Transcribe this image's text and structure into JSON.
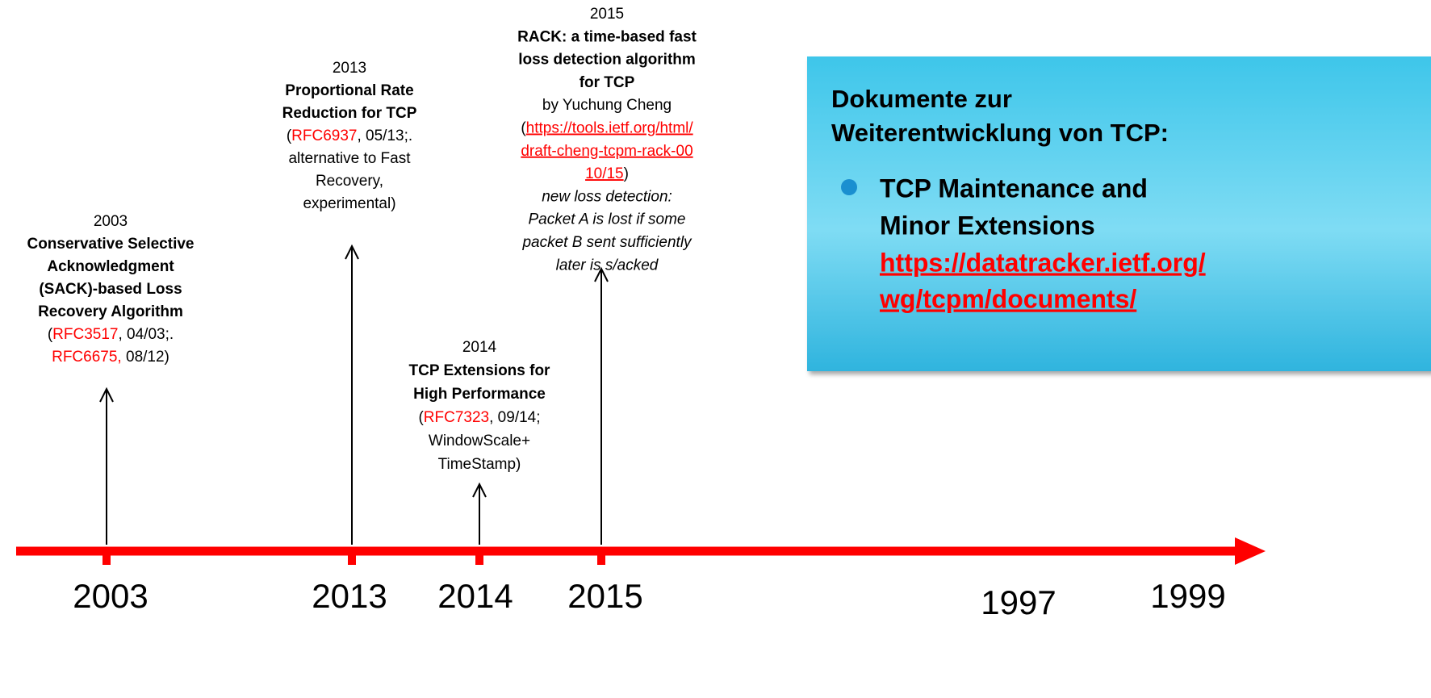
{
  "events": [
    {
      "year": "2003",
      "lines": [
        [
          {
            "text": "Conservative Selective",
            "style": "bold"
          }
        ],
        [
          {
            "text": "Acknowledgment",
            "style": "bold"
          }
        ],
        [
          {
            "text": "(SACK)-based Loss",
            "style": "bold"
          }
        ],
        [
          {
            "text": "Recovery Algorithm",
            "style": "bold"
          }
        ],
        [
          {
            "text": "(",
            "style": "plain"
          },
          {
            "text": "RFC3517",
            "style": "red"
          },
          {
            "text": ", 04/03;.",
            "style": "plain"
          }
        ],
        [
          {
            "text": "RFC6675,",
            "style": "red"
          },
          {
            "text": " 08/12)",
            "style": "plain"
          }
        ]
      ]
    },
    {
      "year": "2013",
      "lines": [
        [
          {
            "text": "Proportional Rate",
            "style": "bold"
          }
        ],
        [
          {
            "text": "Reduction for TCP",
            "style": "bold"
          }
        ],
        [
          {
            "text": "(",
            "style": "plain"
          },
          {
            "text": "RFC6937",
            "style": "red"
          },
          {
            "text": ", 05/13;.",
            "style": "plain"
          }
        ],
        [
          {
            "text": "alternative to Fast",
            "style": "plain"
          }
        ],
        [
          {
            "text": "Recovery,",
            "style": "plain"
          }
        ],
        [
          {
            "text": "experimental)",
            "style": "plain"
          }
        ]
      ]
    },
    {
      "year": "2014",
      "lines": [
        [
          {
            "text": "TCP Extensions for",
            "style": "bold"
          }
        ],
        [
          {
            "text": "High Performance",
            "style": "bold"
          }
        ],
        [
          {
            "text": "(",
            "style": "plain"
          },
          {
            "text": "RFC7323",
            "style": "red"
          },
          {
            "text": ", 09/14;",
            "style": "plain"
          }
        ],
        [
          {
            "text": "WindowScale+",
            "style": "plain"
          }
        ],
        [
          {
            "text": "TimeStamp)",
            "style": "plain"
          }
        ]
      ]
    },
    {
      "year": "2015",
      "lines": [
        [
          {
            "text": "RACK: a time-based fast",
            "style": "bold"
          }
        ],
        [
          {
            "text": "loss detection algorithm",
            "style": "bold"
          }
        ],
        [
          {
            "text": "for TCP",
            "style": "bold"
          }
        ],
        [
          {
            "text": "by Yuchung Cheng",
            "style": "plain"
          }
        ],
        [
          {
            "text": "(",
            "style": "plain"
          },
          {
            "text": "https://tools.ietf.org/html/",
            "style": "link"
          }
        ],
        [
          {
            "text": "draft-cheng-tcpm-rack-00",
            "style": "link"
          }
        ],
        [
          {
            "text": "10/15",
            "style": "link"
          },
          {
            "text": ")",
            "style": "plain"
          }
        ],
        [
          {
            "text": "new loss detection:",
            "style": "italic"
          }
        ],
        [
          {
            "text": "Packet A is lost if some",
            "style": "italic"
          }
        ],
        [
          {
            "text": "packet B sent sufficiently",
            "style": "italic"
          }
        ],
        [
          {
            "text": "later  is s/acked",
            "style": "italic"
          }
        ]
      ]
    }
  ],
  "axis_labels": [
    "2003",
    "2013",
    "2014",
    "2015",
    "1997",
    "1999"
  ],
  "box": {
    "title_lines": [
      "Dokumente zur",
      "Weiterentwicklung von TCP:"
    ],
    "bullet_lines": [
      "TCP Maintenance and",
      "Minor Extensions"
    ],
    "link_lines": [
      "https://datatracker.ietf.org/",
      "wg/tcpm/documents/"
    ]
  }
}
